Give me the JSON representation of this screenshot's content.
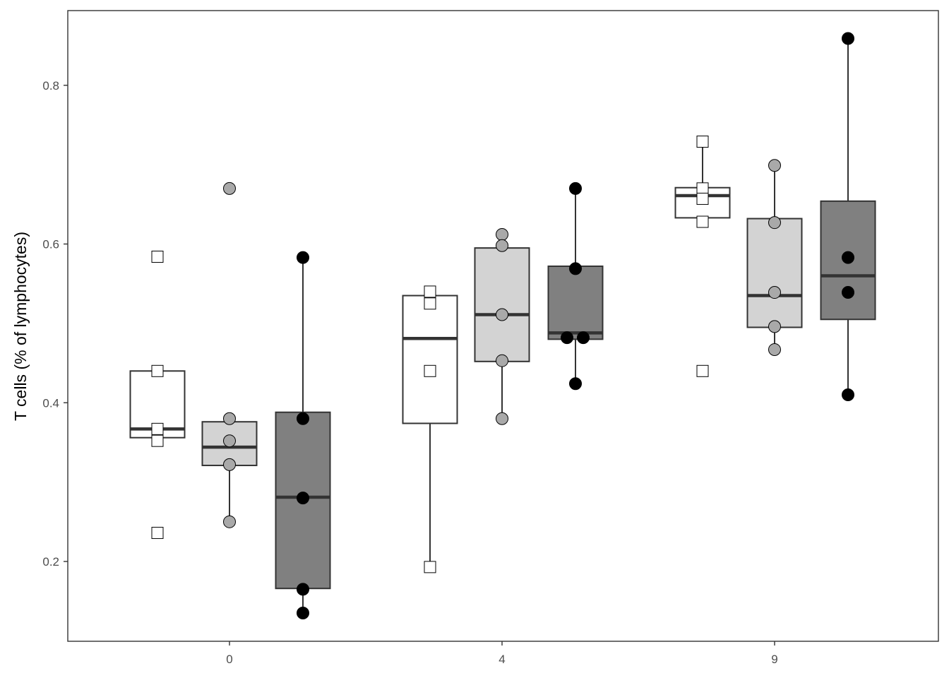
{
  "chart_data": {
    "type": "box",
    "ylabel": "T cells (% of lymphocytes)",
    "xlabel": "",
    "x_ticks": [
      "0",
      "4",
      "9"
    ],
    "y_ticks": [
      "0.2",
      "0.4",
      "0.6",
      "0.8"
    ],
    "ylim": [
      0.1,
      0.895
    ],
    "grid": false,
    "legend": "none",
    "groups": [
      {
        "x": "0",
        "boxes": [
          {
            "fill": "#ffffff",
            "point_shape": "square",
            "point_fill": "#ffffff",
            "q1": 0.356,
            "median": 0.367,
            "q3": 0.44,
            "whisker_low": 0.356,
            "whisker_high": 0.44,
            "points": [
              0.584,
              0.44,
              0.367,
              0.352,
              0.236
            ]
          },
          {
            "fill": "#d3d3d3",
            "point_shape": "circle",
            "point_fill": "#a9a9a9",
            "q1": 0.321,
            "median": 0.344,
            "q3": 0.376,
            "whisker_low": 0.25,
            "whisker_high": 0.38,
            "points": [
              0.67,
              0.38,
              0.352,
              0.322,
              0.25
            ]
          },
          {
            "fill": "#808080",
            "point_shape": "circle",
            "point_fill": "#000000",
            "q1": 0.166,
            "median": 0.281,
            "q3": 0.388,
            "whisker_low": 0.135,
            "whisker_high": 0.583,
            "points": [
              0.583,
              0.38,
              0.28,
              0.165,
              0.135
            ]
          }
        ]
      },
      {
        "x": "4",
        "boxes": [
          {
            "fill": "#ffffff",
            "point_shape": "square",
            "point_fill": "#ffffff",
            "q1": 0.374,
            "median": 0.481,
            "q3": 0.535,
            "whisker_low": 0.193,
            "whisker_high": 0.535,
            "points": [
              0.54,
              0.525,
              0.44,
              0.193
            ]
          },
          {
            "fill": "#d3d3d3",
            "point_shape": "circle",
            "point_fill": "#a9a9a9",
            "q1": 0.452,
            "median": 0.511,
            "q3": 0.595,
            "whisker_low": 0.38,
            "whisker_high": 0.595,
            "points": [
              0.612,
              0.598,
              0.511,
              0.453,
              0.38
            ]
          },
          {
            "fill": "#808080",
            "point_shape": "circle",
            "point_fill": "#000000",
            "q1": 0.48,
            "median": 0.488,
            "q3": 0.572,
            "whisker_low": 0.424,
            "whisker_high": 0.67,
            "points": [
              0.67,
              0.569,
              0.482,
              0.482,
              0.424
            ]
          }
        ]
      },
      {
        "x": "9",
        "boxes": [
          {
            "fill": "#ffffff",
            "point_shape": "square",
            "point_fill": "#ffffff",
            "q1": 0.633,
            "median": 0.661,
            "q3": 0.671,
            "whisker_low": 0.633,
            "whisker_high": 0.729,
            "points": [
              0.729,
              0.67,
              0.657,
              0.628,
              0.44
            ]
          },
          {
            "fill": "#d3d3d3",
            "point_shape": "circle",
            "point_fill": "#a9a9a9",
            "q1": 0.495,
            "median": 0.535,
            "q3": 0.632,
            "whisker_low": 0.467,
            "whisker_high": 0.699,
            "points": [
              0.699,
              0.627,
              0.539,
              0.496,
              0.467
            ]
          },
          {
            "fill": "#808080",
            "point_shape": "circle",
            "point_fill": "#000000",
            "q1": 0.505,
            "median": 0.56,
            "q3": 0.654,
            "whisker_low": 0.41,
            "whisker_high": 0.859,
            "points": [
              0.859,
              0.583,
              0.539,
              0.41
            ]
          }
        ]
      }
    ]
  }
}
